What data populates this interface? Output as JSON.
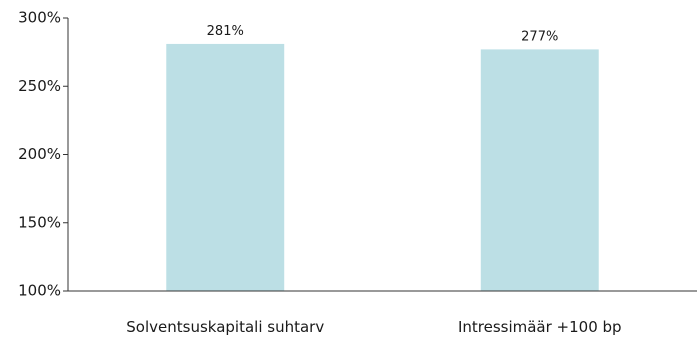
{
  "chart_data": {
    "type": "bar",
    "categories": [
      "Solventsuskapitali suhtarv",
      "Intressimäär +100 bp"
    ],
    "values": [
      281,
      277
    ],
    "data_labels": [
      "281%",
      "277%"
    ],
    "ylim": [
      100,
      300
    ],
    "y_ticks": [
      100,
      150,
      200,
      250,
      300
    ],
    "y_tick_labels": [
      "100%",
      "150%",
      "200%",
      "250%",
      "300%"
    ],
    "grid": false,
    "legend": "none",
    "bar_color": "#bcdfe5",
    "axis_color": "#333333"
  }
}
